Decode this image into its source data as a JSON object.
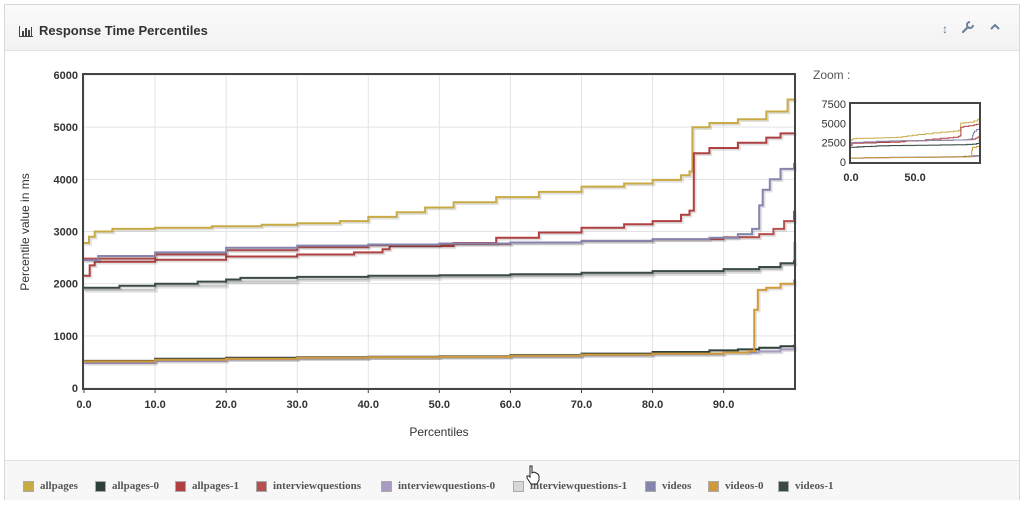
{
  "panel": {
    "title": "Response Time Percentiles",
    "icons": {
      "title": "bar-chart-icon",
      "resize": "resize-vertical-icon",
      "wrench": "wrench-icon",
      "collapse": "chevron-up-icon"
    },
    "tool_glyphs": {
      "resize": "↕",
      "collapse": "⌃"
    }
  },
  "chart_data": {
    "type": "line",
    "title": "",
    "xlabel": "Percentiles",
    "ylabel": "Percentile value in ms",
    "xlim": [
      0,
      99.9
    ],
    "ylim": [
      0,
      6000
    ],
    "x_ticks": [
      "0.0",
      "10.0",
      "20.0",
      "30.0",
      "40.0",
      "50.0",
      "60.0",
      "70.0",
      "80.0",
      "90.0"
    ],
    "y_ticks": [
      "0",
      "1000",
      "2000",
      "3000",
      "4000",
      "5000",
      "6000"
    ],
    "grid": true,
    "legend_position": "bottom",
    "series": [
      {
        "name": "allpages",
        "color": "#c9ab45",
        "points": [
          [
            0,
            2780
          ],
          [
            0.7,
            2900
          ],
          [
            1.5,
            3000
          ],
          [
            4,
            3050
          ],
          [
            10,
            3070
          ],
          [
            18,
            3100
          ],
          [
            25,
            3130
          ],
          [
            30,
            3160
          ],
          [
            36,
            3200
          ],
          [
            40,
            3280
          ],
          [
            44,
            3370
          ],
          [
            48,
            3460
          ],
          [
            52,
            3560
          ],
          [
            58,
            3660
          ],
          [
            64,
            3760
          ],
          [
            70,
            3860
          ],
          [
            76,
            3920
          ],
          [
            80,
            3990
          ],
          [
            84,
            4080
          ],
          [
            85.2,
            4150
          ],
          [
            85.6,
            5000
          ],
          [
            88,
            5080
          ],
          [
            92,
            5150
          ],
          [
            96,
            5300
          ],
          [
            99,
            5530
          ],
          [
            99.9,
            5550
          ]
        ]
      },
      {
        "name": "allpages-0",
        "color": "#2f3f3a",
        "points": [
          [
            0,
            520
          ],
          [
            10,
            560
          ],
          [
            20,
            580
          ],
          [
            30,
            590
          ],
          [
            40,
            600
          ],
          [
            50,
            610
          ],
          [
            60,
            630
          ],
          [
            70,
            660
          ],
          [
            80,
            690
          ],
          [
            88,
            720
          ],
          [
            92,
            740
          ],
          [
            95,
            770
          ],
          [
            98,
            800
          ],
          [
            99.9,
            830
          ]
        ]
      },
      {
        "name": "allpages-1",
        "color": "#b04040",
        "points": [
          [
            0,
            2150
          ],
          [
            0.8,
            2350
          ],
          [
            1.5,
            2420
          ],
          [
            10,
            2460
          ],
          [
            20,
            2520
          ],
          [
            30,
            2560
          ],
          [
            38,
            2600
          ],
          [
            42,
            2660
          ],
          [
            43,
            2720
          ],
          [
            52,
            2780
          ],
          [
            58,
            2880
          ],
          [
            64,
            2980
          ],
          [
            70,
            3070
          ],
          [
            76,
            3140
          ],
          [
            80,
            3200
          ],
          [
            84,
            3320
          ],
          [
            85.2,
            3400
          ],
          [
            85.8,
            4500
          ],
          [
            88,
            4600
          ],
          [
            92,
            4700
          ],
          [
            96,
            4800
          ],
          [
            98,
            4880
          ],
          [
            99.9,
            4900
          ]
        ]
      },
      {
        "name": "interviewquestions",
        "color": "#b85050",
        "points": [
          [
            0,
            2480
          ],
          [
            10,
            2560
          ],
          [
            20,
            2640
          ],
          [
            30,
            2700
          ],
          [
            40,
            2740
          ],
          [
            50,
            2760
          ],
          [
            60,
            2790
          ],
          [
            70,
            2820
          ],
          [
            80,
            2850
          ],
          [
            90,
            2890
          ],
          [
            95,
            2950
          ],
          [
            97,
            3050
          ],
          [
            98.5,
            3200
          ],
          [
            99.9,
            3400
          ]
        ]
      },
      {
        "name": "interviewquestions-0",
        "color": "#a89ac0",
        "points": [
          [
            0,
            480
          ],
          [
            10,
            520
          ],
          [
            20,
            550
          ],
          [
            30,
            570
          ],
          [
            40,
            590
          ],
          [
            50,
            600
          ],
          [
            60,
            610
          ],
          [
            70,
            630
          ],
          [
            80,
            650
          ],
          [
            90,
            680
          ],
          [
            95,
            700
          ],
          [
            98,
            740
          ],
          [
            99.9,
            780
          ]
        ]
      },
      {
        "name": "interviewquestions-1",
        "color": "#c8c8c8",
        "points": [
          [
            0,
            1880
          ],
          [
            10,
            1960
          ],
          [
            20,
            2040
          ],
          [
            30,
            2080
          ],
          [
            40,
            2110
          ],
          [
            50,
            2130
          ],
          [
            60,
            2150
          ],
          [
            70,
            2170
          ],
          [
            80,
            2200
          ],
          [
            90,
            2240
          ],
          [
            95,
            2290
          ],
          [
            98,
            2380
          ],
          [
            99.9,
            2800
          ]
        ]
      },
      {
        "name": "videos",
        "color": "#8585ad",
        "points": [
          [
            0,
            2450
          ],
          [
            2,
            2530
          ],
          [
            10,
            2600
          ],
          [
            20,
            2690
          ],
          [
            30,
            2730
          ],
          [
            40,
            2750
          ],
          [
            50,
            2770
          ],
          [
            60,
            2790
          ],
          [
            70,
            2820
          ],
          [
            80,
            2850
          ],
          [
            88,
            2880
          ],
          [
            92,
            2950
          ],
          [
            94,
            3050
          ],
          [
            95,
            3500
          ],
          [
            95.5,
            3800
          ],
          [
            96.5,
            4000
          ],
          [
            98,
            4200
          ],
          [
            99.9,
            4320
          ]
        ]
      },
      {
        "name": "videos-0",
        "color": "#d09a3a",
        "points": [
          [
            0,
            510
          ],
          [
            10,
            540
          ],
          [
            20,
            560
          ],
          [
            30,
            580
          ],
          [
            40,
            590
          ],
          [
            50,
            600
          ],
          [
            60,
            620
          ],
          [
            70,
            640
          ],
          [
            80,
            660
          ],
          [
            90,
            680
          ],
          [
            93.5,
            710
          ],
          [
            94.3,
            1500
          ],
          [
            94.8,
            1880
          ],
          [
            96,
            1920
          ],
          [
            98,
            2000
          ],
          [
            99.9,
            2080
          ]
        ]
      },
      {
        "name": "videos-1",
        "color": "#3a4a45",
        "points": [
          [
            0,
            1920
          ],
          [
            5,
            1960
          ],
          [
            10,
            2000
          ],
          [
            16,
            2040
          ],
          [
            20,
            2080
          ],
          [
            22,
            2110
          ],
          [
            30,
            2130
          ],
          [
            40,
            2150
          ],
          [
            50,
            2160
          ],
          [
            60,
            2180
          ],
          [
            70,
            2210
          ],
          [
            80,
            2240
          ],
          [
            90,
            2280
          ],
          [
            95,
            2320
          ],
          [
            98,
            2390
          ],
          [
            99.9,
            2450
          ]
        ]
      }
    ]
  },
  "zoom": {
    "label": "Zoom :",
    "ylim": [
      0,
      7500
    ],
    "y_ticks": [
      "0",
      "2500",
      "5000",
      "7500"
    ],
    "x_ticks": [
      "0.0",
      "50.0"
    ]
  },
  "legend": {
    "items": [
      {
        "label": "allpages",
        "color": "#c9ab45"
      },
      {
        "label": "allpages-0",
        "color": "#2f3f3a"
      },
      {
        "label": "allpages-1",
        "color": "#b04040"
      },
      {
        "label": "interviewquestions",
        "color": "#b85050"
      },
      {
        "label": "interviewquestions-0",
        "color": "#a89ac0"
      },
      {
        "label": "interviewquestions-1",
        "color": "#d8d8d8"
      },
      {
        "label": "videos",
        "color": "#8585ad"
      },
      {
        "label": "videos-0",
        "color": "#d09a3a"
      },
      {
        "label": "videos-1",
        "color": "#3a4a45"
      }
    ]
  }
}
